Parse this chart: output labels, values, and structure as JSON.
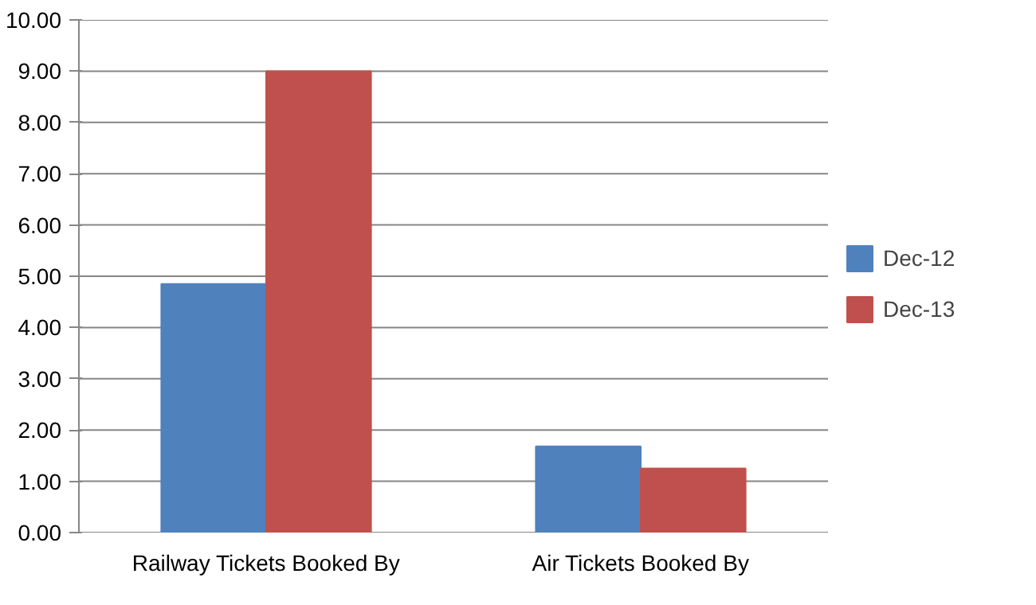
{
  "chart_data": {
    "type": "bar",
    "categories": [
      "Railway Tickets Booked By",
      "Air Tickets Booked By"
    ],
    "series": [
      {
        "name": "Dec-12",
        "color": "#4f81bd",
        "values": [
          4.85,
          1.68
        ]
      },
      {
        "name": "Dec-13",
        "color": "#c0504d",
        "values": [
          9.0,
          1.25
        ]
      }
    ],
    "ylim": [
      0,
      10
    ],
    "yticks": [
      {
        "value": 0,
        "label": "0.00"
      },
      {
        "value": 1,
        "label": "1.00"
      },
      {
        "value": 2,
        "label": "2.00"
      },
      {
        "value": 3,
        "label": "3.00"
      },
      {
        "value": 4,
        "label": "4.00"
      },
      {
        "value": 5,
        "label": "5.00"
      },
      {
        "value": 6,
        "label": "6.00"
      },
      {
        "value": 7,
        "label": "7.00"
      },
      {
        "value": 8,
        "label": "8.00"
      },
      {
        "value": 9,
        "label": "9.00"
      },
      {
        "value": 10,
        "label": "10.00"
      }
    ],
    "grid": "y",
    "legend": "right"
  }
}
